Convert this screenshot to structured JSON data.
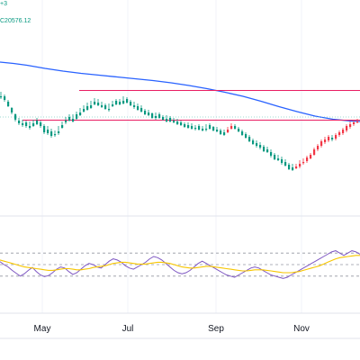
{
  "header": {
    "legend_top": "+3",
    "legend_value": "C20576.12"
  },
  "colors": {
    "up": "#089981",
    "down": "#f23645",
    "ma": "#2962ff",
    "level_line": "#e91e63",
    "rsi_line": "#7e57c2",
    "rsi_signal": "#f7c600",
    "grid": "#f0f3fa",
    "dotted": "#9598a1"
  },
  "chart_data": [
    {
      "type": "candlestick",
      "title": "",
      "x_axis": {
        "tick_labels": [
          "May",
          "Jul",
          "Sep",
          "Nov"
        ]
      },
      "ma_line": {
        "points": [
          [
            0,
            17.0
          ],
          [
            15,
            18.5
          ],
          [
            30,
            20.5
          ],
          [
            50,
            24
          ],
          [
            70,
            27
          ],
          [
            90,
            29.5
          ],
          [
            110,
            31.5
          ],
          [
            130,
            33.5
          ],
          [
            150,
            35.5
          ],
          [
            170,
            37.5
          ],
          [
            190,
            40
          ],
          [
            210,
            43
          ],
          [
            230,
            46.5
          ],
          [
            250,
            50.5
          ],
          [
            270,
            55
          ],
          [
            290,
            60.5
          ],
          [
            310,
            66.5
          ],
          [
            330,
            72
          ],
          [
            350,
            77
          ],
          [
            370,
            80.5
          ],
          [
            390,
            82.5
          ],
          [
            400,
            83
          ]
        ]
      },
      "levels": [
        {
          "value": 29.5,
          "x_start": 88,
          "x_end": 400
        },
        {
          "value": 62.5,
          "x_start": 25,
          "x_end": 400
        }
      ],
      "candles": [
        [
          0,
          27,
          28,
          22,
          30
        ],
        [
          4,
          27,
          31,
          25,
          33
        ],
        [
          8,
          33,
          38,
          31,
          39
        ],
        [
          12,
          40,
          45,
          39,
          47
        ],
        [
          16,
          47,
          53,
          46,
          55
        ],
        [
          20,
          54,
          57,
          51,
          59
        ],
        [
          24,
          57,
          59,
          53,
          61
        ],
        [
          28,
          56,
          60,
          54,
          62
        ],
        [
          32,
          60,
          62,
          55,
          64
        ],
        [
          36,
          57,
          60,
          53,
          61
        ],
        [
          40,
          54,
          58,
          51,
          59
        ],
        [
          44,
          56,
          60,
          54,
          62
        ],
        [
          48,
          60,
          67,
          58,
          69
        ],
        [
          52,
          64,
          68,
          60,
          70
        ],
        [
          56,
          66,
          71,
          63,
          73
        ],
        [
          60,
          69,
          70,
          65,
          72
        ],
        [
          64,
          66,
          68,
          60,
          70
        ],
        [
          68,
          59,
          62,
          55,
          63
        ],
        [
          72,
          54,
          56,
          50,
          58
        ],
        [
          76,
          50,
          54,
          47,
          55
        ],
        [
          80,
          52,
          55,
          47,
          56
        ],
        [
          84,
          47,
          52,
          44,
          53
        ],
        [
          88,
          45,
          48,
          40,
          49
        ],
        [
          92,
          41,
          44,
          37,
          45
        ],
        [
          96,
          38,
          42,
          34,
          43
        ],
        [
          100,
          37,
          40,
          32,
          41
        ],
        [
          104,
          33,
          36,
          29,
          37
        ],
        [
          108,
          34,
          37,
          30,
          38
        ],
        [
          112,
          37,
          39,
          33,
          40
        ],
        [
          116,
          37,
          41,
          35,
          42
        ],
        [
          120,
          41,
          42,
          35,
          44
        ],
        [
          124,
          36,
          38,
          32,
          39
        ],
        [
          128,
          32,
          36,
          30,
          37
        ],
        [
          132,
          33,
          36,
          30,
          37
        ],
        [
          136,
          32,
          35,
          27,
          36
        ],
        [
          140,
          30,
          34,
          28,
          35
        ],
        [
          144,
          33,
          37,
          31,
          38
        ],
        [
          148,
          37,
          39,
          33,
          41
        ],
        [
          152,
          38,
          42,
          35,
          43
        ],
        [
          156,
          40,
          44,
          37,
          45
        ],
        [
          160,
          43,
          47,
          41,
          48
        ],
        [
          164,
          45,
          48,
          42,
          49
        ],
        [
          168,
          46,
          51,
          45,
          52
        ],
        [
          172,
          49,
          51,
          45,
          53
        ],
        [
          176,
          47,
          51,
          45,
          52
        ],
        [
          180,
          50,
          53,
          48,
          54
        ],
        [
          184,
          52,
          55,
          48,
          56
        ],
        [
          188,
          51,
          55,
          49,
          56
        ],
        [
          192,
          54,
          56,
          51,
          57
        ],
        [
          196,
          55,
          58,
          52,
          59
        ],
        [
          200,
          56,
          59,
          54,
          60
        ],
        [
          204,
          58,
          61,
          56,
          62
        ],
        [
          208,
          59,
          62,
          56,
          63
        ],
        [
          212,
          60,
          63,
          57,
          64
        ],
        [
          216,
          62,
          63,
          59,
          65
        ],
        [
          220,
          60,
          64,
          58,
          65
        ],
        [
          224,
          63,
          65,
          60,
          66
        ],
        [
          228,
          63,
          64,
          58,
          66
        ],
        [
          232,
          59,
          63,
          57,
          64
        ],
        [
          236,
          61,
          65,
          60,
          66
        ],
        [
          240,
          64,
          66,
          61,
          67
        ],
        [
          244,
          65,
          69,
          63,
          70
        ],
        [
          248,
          67,
          70,
          64,
          71
        ],
        [
          252,
          67,
          64,
          61,
          68
        ],
        [
          256,
          63,
          60,
          57,
          64
        ],
        [
          260,
          60,
          63,
          58,
          64
        ],
        [
          264,
          63,
          66,
          61,
          67
        ],
        [
          268,
          66,
          70,
          64,
          71
        ],
        [
          272,
          69,
          73,
          67,
          74
        ],
        [
          276,
          72,
          77,
          70,
          78
        ],
        [
          280,
          76,
          80,
          74,
          81
        ],
        [
          284,
          79,
          82,
          76,
          84
        ],
        [
          288,
          81,
          84,
          78,
          86
        ],
        [
          292,
          83,
          88,
          81,
          89
        ],
        [
          296,
          86,
          89,
          83,
          90
        ],
        [
          300,
          89,
          93,
          86,
          95
        ],
        [
          304,
          92,
          97,
          90,
          98
        ],
        [
          308,
          96,
          98,
          92,
          99
        ],
        [
          312,
          97,
          101,
          94,
          103
        ],
        [
          316,
          100,
          104,
          97,
          105
        ],
        [
          320,
          103,
          108,
          101,
          109
        ],
        [
          324,
          106,
          109,
          102,
          110
        ],
        [
          328,
          107,
          105,
          102,
          108
        ],
        [
          332,
          105,
          102,
          98,
          107
        ],
        [
          336,
          101,
          100,
          96,
          103
        ],
        [
          340,
          99,
          95,
          93,
          101
        ],
        [
          344,
          96,
          92,
          90,
          97
        ],
        [
          348,
          92,
          86,
          84,
          93
        ],
        [
          352,
          86,
          82,
          80,
          88
        ],
        [
          356,
          82,
          77,
          75,
          84
        ],
        [
          360,
          78,
          75,
          72,
          80
        ],
        [
          364,
          76,
          72,
          70,
          78
        ],
        [
          368,
          73,
          75,
          70,
          77
        ],
        [
          372,
          74,
          70,
          68,
          76
        ],
        [
          376,
          70,
          67,
          65,
          72
        ],
        [
          380,
          68,
          64,
          62,
          70
        ],
        [
          384,
          65,
          60,
          58,
          67
        ],
        [
          388,
          61,
          58,
          55,
          63
        ],
        [
          392,
          58,
          56,
          53,
          60
        ],
        [
          396,
          55,
          55,
          52,
          57
        ]
      ]
    },
    {
      "type": "line",
      "title": "",
      "ylim": [
        0,
        100
      ],
      "levels": [
        70,
        50,
        30
      ],
      "series": [
        {
          "values": [
            55,
            50,
            46,
            40,
            35,
            30,
            34,
            40,
            45,
            38,
            32,
            29,
            31,
            36,
            42,
            46,
            44,
            38,
            33,
            36,
            42,
            48,
            52,
            50,
            46,
            44,
            50,
            56,
            60,
            58,
            54,
            48,
            44,
            42,
            46,
            50,
            54,
            60,
            64,
            62,
            58,
            52,
            46,
            40,
            36,
            34,
            36,
            40,
            46,
            52,
            56,
            52,
            48,
            44,
            40,
            36,
            32,
            30,
            28,
            32,
            36,
            40,
            44,
            46,
            44,
            40,
            36,
            32,
            30,
            28,
            26,
            28,
            32,
            36,
            40,
            44,
            48,
            52,
            56,
            60,
            64,
            68,
            72,
            74,
            70,
            66,
            70,
            74,
            72,
            68
          ]
        },
        {
          "values": [
            58,
            56,
            54,
            52,
            50,
            48,
            46,
            45,
            44,
            43,
            42,
            41,
            40,
            40,
            41,
            42,
            43,
            43,
            42,
            41,
            41,
            42,
            43,
            45,
            46,
            47,
            48,
            50,
            52,
            53,
            54,
            54,
            53,
            52,
            51,
            51,
            51,
            52,
            53,
            54,
            54,
            53,
            52,
            50,
            48,
            46,
            45,
            44,
            44,
            45,
            46,
            47,
            47,
            46,
            45,
            44,
            43,
            42,
            41,
            40,
            39,
            39,
            40,
            41,
            41,
            41,
            40,
            39,
            38,
            37,
            36,
            36,
            36,
            37,
            38,
            40,
            42,
            44,
            46,
            48,
            51,
            54,
            57,
            60,
            62,
            63,
            64,
            65,
            66,
            66
          ]
        }
      ]
    }
  ]
}
